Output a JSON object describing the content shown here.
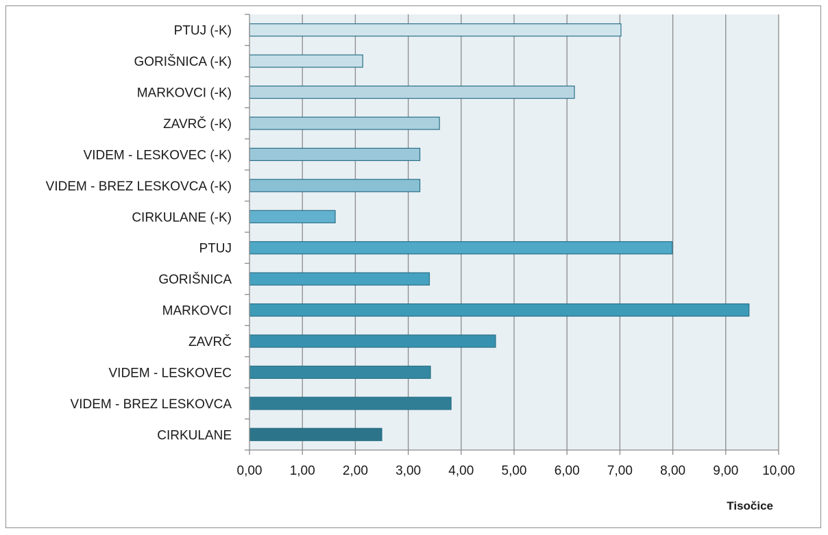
{
  "chart_data": {
    "type": "bar",
    "orientation": "horizontal",
    "categories": [
      "PTUJ (-K)",
      "GORIŠNICA (-K)",
      "MARKOVCI (-K)",
      "ZAVRČ (-K)",
      "VIDEM - LESKOVEC (-K)",
      "VIDEM - BREZ LESKOVCA (-K)",
      "CIRKULANE (-K)",
      "PTUJ",
      "GORIŠNICA",
      "MARKOVCI",
      "ZAVRČ",
      "VIDEM - LESKOVEC",
      "VIDEM - BREZ LESKOVCA",
      "CIRKULANE"
    ],
    "values": [
      7.02,
      2.14,
      6.14,
      3.59,
      3.22,
      3.22,
      1.62,
      7.99,
      3.4,
      9.44,
      4.65,
      3.42,
      3.81,
      2.5
    ],
    "colors": [
      "#d0e4ec",
      "#c6dfe8",
      "#b8d6e2",
      "#aad0de",
      "#9ac8d9",
      "#8ac0d4",
      "#62b2cf",
      "#4ea8c6",
      "#46a2c1",
      "#3d9bb8",
      "#3892af",
      "#3488a2",
      "#307e96",
      "#2c7489"
    ],
    "xlabel": "",
    "ylabel": "",
    "unit_label": "Tisočice",
    "xlim": [
      0,
      10
    ],
    "xticks": [
      "0,00",
      "1,00",
      "2,00",
      "3,00",
      "4,00",
      "5,00",
      "6,00",
      "7,00",
      "8,00",
      "9,00",
      "10,00"
    ],
    "grid": "vertical",
    "plot_background": "#e8f0f4",
    "gridline_color": "#8a8a8a",
    "bar_border_color": "#2a7087"
  }
}
